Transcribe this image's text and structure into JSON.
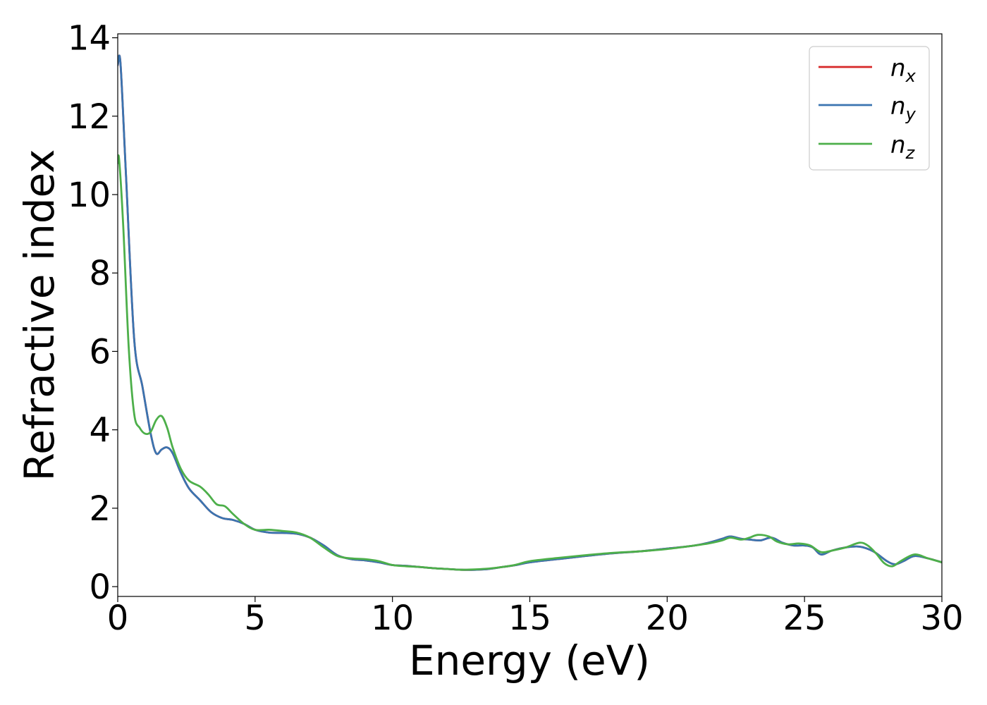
{
  "chart_data": {
    "type": "line",
    "title": "",
    "xlabel": "Energy (eV)",
    "ylabel": "Refractive index",
    "xlim": [
      0,
      30
    ],
    "ylim": [
      -0.25,
      14.1
    ],
    "xticks": [
      0,
      5,
      10,
      15,
      20,
      25,
      30
    ],
    "yticks": [
      0,
      2,
      4,
      6,
      8,
      10,
      12,
      14
    ],
    "grid": false,
    "legend_position": "top-right",
    "series": [
      {
        "name": "n",
        "subscript": "x",
        "color": "#d62728",
        "x": [
          0,
          0.1,
          0.3,
          0.6,
          0.9,
          1.2,
          1.4,
          1.6,
          1.8,
          2.0,
          2.3,
          2.6,
          3.0,
          3.4,
          3.8,
          4.2,
          4.6,
          5.0,
          5.5,
          6.0,
          6.5,
          7.0,
          7.5,
          8.0,
          8.5,
          9.0,
          9.5,
          10.0,
          10.5,
          11.0,
          11.5,
          12.0,
          12.5,
          13.0,
          13.5,
          14.0,
          14.5,
          15.0,
          16.0,
          17.0,
          18.0,
          19.0,
          20.0,
          21.0,
          21.5,
          22.0,
          22.3,
          22.7,
          23.0,
          23.4,
          23.8,
          24.2,
          24.6,
          25.0,
          25.3,
          25.6,
          26.0,
          26.5,
          27.0,
          27.5,
          28.0,
          28.3,
          28.6,
          29.0,
          29.5,
          30.0
        ],
        "y": [
          13.3,
          13.35,
          10.5,
          6.3,
          5.1,
          3.9,
          3.4,
          3.5,
          3.55,
          3.4,
          2.9,
          2.5,
          2.2,
          1.9,
          1.75,
          1.7,
          1.6,
          1.45,
          1.38,
          1.37,
          1.35,
          1.25,
          1.05,
          0.8,
          0.7,
          0.67,
          0.62,
          0.55,
          0.53,
          0.5,
          0.47,
          0.45,
          0.43,
          0.43,
          0.45,
          0.5,
          0.55,
          0.62,
          0.7,
          0.78,
          0.85,
          0.9,
          0.97,
          1.05,
          1.12,
          1.22,
          1.28,
          1.22,
          1.2,
          1.18,
          1.25,
          1.12,
          1.05,
          1.05,
          1.0,
          0.82,
          0.92,
          1.0,
          1.02,
          0.9,
          0.65,
          0.57,
          0.65,
          0.78,
          0.72,
          0.62
        ]
      },
      {
        "name": "n",
        "subscript": "y",
        "color": "#3a74b0",
        "x": [
          0,
          0.1,
          0.3,
          0.6,
          0.9,
          1.2,
          1.4,
          1.6,
          1.8,
          2.0,
          2.3,
          2.6,
          3.0,
          3.4,
          3.8,
          4.2,
          4.6,
          5.0,
          5.5,
          6.0,
          6.5,
          7.0,
          7.5,
          8.0,
          8.5,
          9.0,
          9.5,
          10.0,
          10.5,
          11.0,
          11.5,
          12.0,
          12.5,
          13.0,
          13.5,
          14.0,
          14.5,
          15.0,
          16.0,
          17.0,
          18.0,
          19.0,
          20.0,
          21.0,
          21.5,
          22.0,
          22.3,
          22.7,
          23.0,
          23.4,
          23.8,
          24.2,
          24.6,
          25.0,
          25.3,
          25.6,
          26.0,
          26.5,
          27.0,
          27.5,
          28.0,
          28.3,
          28.6,
          29.0,
          29.5,
          30.0
        ],
        "y": [
          13.3,
          13.35,
          10.5,
          6.3,
          5.1,
          3.9,
          3.4,
          3.5,
          3.55,
          3.4,
          2.9,
          2.5,
          2.2,
          1.9,
          1.75,
          1.7,
          1.6,
          1.45,
          1.38,
          1.37,
          1.35,
          1.25,
          1.05,
          0.8,
          0.7,
          0.67,
          0.62,
          0.55,
          0.53,
          0.5,
          0.47,
          0.45,
          0.43,
          0.43,
          0.45,
          0.5,
          0.55,
          0.62,
          0.7,
          0.78,
          0.85,
          0.9,
          0.97,
          1.05,
          1.12,
          1.22,
          1.28,
          1.22,
          1.2,
          1.18,
          1.25,
          1.12,
          1.05,
          1.05,
          1.0,
          0.82,
          0.92,
          1.0,
          1.02,
          0.9,
          0.65,
          0.57,
          0.65,
          0.78,
          0.72,
          0.62
        ]
      },
      {
        "name": "n",
        "subscript": "z",
        "color": "#4daf4a",
        "x": [
          0,
          0.05,
          0.2,
          0.4,
          0.6,
          0.8,
          1.0,
          1.2,
          1.4,
          1.6,
          1.8,
          2.0,
          2.3,
          2.6,
          3.0,
          3.3,
          3.6,
          3.9,
          4.2,
          4.6,
          5.0,
          5.5,
          6.0,
          6.5,
          7.0,
          7.5,
          8.0,
          8.5,
          9.0,
          9.5,
          10.0,
          10.5,
          11.0,
          11.5,
          12.0,
          12.5,
          13.0,
          13.5,
          14.0,
          14.5,
          15.0,
          16.0,
          17.0,
          18.0,
          19.0,
          20.0,
          21.0,
          21.5,
          22.0,
          22.3,
          22.7,
          23.0,
          23.3,
          23.7,
          24.0,
          24.4,
          24.8,
          25.2,
          25.6,
          26.0,
          26.5,
          27.0,
          27.3,
          27.6,
          27.9,
          28.2,
          28.5,
          29.0,
          29.5,
          30.0
        ],
        "y": [
          10.8,
          10.9,
          9.2,
          6.1,
          4.4,
          4.05,
          3.9,
          3.95,
          4.25,
          4.35,
          4.05,
          3.55,
          3.0,
          2.7,
          2.55,
          2.35,
          2.1,
          2.05,
          1.85,
          1.6,
          1.45,
          1.45,
          1.42,
          1.38,
          1.25,
          1.0,
          0.78,
          0.72,
          0.7,
          0.65,
          0.55,
          0.52,
          0.5,
          0.47,
          0.45,
          0.43,
          0.44,
          0.46,
          0.5,
          0.56,
          0.65,
          0.73,
          0.8,
          0.86,
          0.9,
          0.96,
          1.05,
          1.1,
          1.18,
          1.25,
          1.2,
          1.25,
          1.32,
          1.28,
          1.15,
          1.08,
          1.1,
          1.05,
          0.88,
          0.92,
          1.0,
          1.12,
          1.05,
          0.85,
          0.6,
          0.52,
          0.65,
          0.82,
          0.72,
          0.62
        ]
      }
    ]
  }
}
